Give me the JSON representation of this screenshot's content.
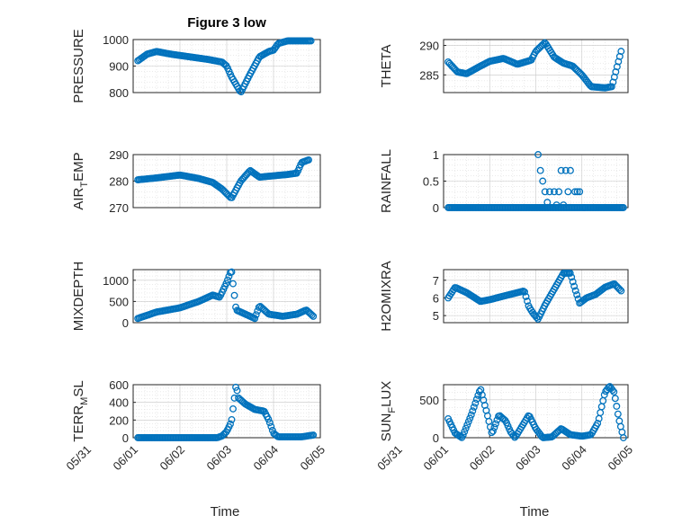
{
  "title": "Figure 3 low",
  "colors": {
    "marker": "#0072BD",
    "grid": "#c8c8c8",
    "axis": "#262626"
  },
  "x_ticks": [
    "05/31",
    "06/01",
    "06/02",
    "06/03",
    "06/04",
    "06/05"
  ],
  "x_label": "Time",
  "chart_data": [
    {
      "id": "pressure",
      "type": "scatter",
      "ylabel": "PRESSURE",
      "ylabel_sub": "",
      "ylim": [
        800,
        1000
      ],
      "yticks": [
        "800",
        "900",
        "1000"
      ],
      "ytick_values": [
        800,
        900,
        1000
      ],
      "x_range": [
        0,
        4
      ],
      "x_segment": [
        0.1,
        3.8
      ],
      "y_knots": [
        [
          0.1,
          920
        ],
        [
          0.3,
          945
        ],
        [
          0.5,
          955
        ],
        [
          0.8,
          945
        ],
        [
          1.2,
          935
        ],
        [
          1.6,
          925
        ],
        [
          1.9,
          915
        ],
        [
          2.0,
          900
        ],
        [
          2.1,
          860
        ],
        [
          2.2,
          830
        ],
        [
          2.3,
          800
        ],
        [
          2.5,
          870
        ],
        [
          2.7,
          935
        ],
        [
          2.9,
          955
        ],
        [
          3.0,
          960
        ],
        [
          3.1,
          985
        ],
        [
          3.3,
          995
        ],
        [
          3.8,
          995
        ]
      ]
    },
    {
      "id": "theta",
      "type": "scatter",
      "ylabel": "THETA",
      "ylabel_sub": "",
      "ylim": [
        282,
        291
      ],
      "yticks": [
        "285",
        "290"
      ],
      "ytick_values": [
        285,
        290
      ],
      "x_range": [
        0,
        4
      ],
      "x_segment": [
        0.1,
        3.85
      ],
      "y_knots": [
        [
          0.1,
          287.2
        ],
        [
          0.3,
          285.5
        ],
        [
          0.5,
          285.2
        ],
        [
          0.8,
          286.5
        ],
        [
          1.0,
          287.3
        ],
        [
          1.3,
          287.8
        ],
        [
          1.6,
          286.8
        ],
        [
          1.9,
          287.5
        ],
        [
          2.0,
          289
        ],
        [
          2.2,
          290.5
        ],
        [
          2.4,
          288
        ],
        [
          2.6,
          287
        ],
        [
          2.8,
          286.5
        ],
        [
          3.0,
          285
        ],
        [
          3.2,
          283
        ],
        [
          3.5,
          282.8
        ],
        [
          3.65,
          283
        ],
        [
          3.75,
          286
        ],
        [
          3.85,
          289
        ]
      ]
    },
    {
      "id": "air_temp",
      "type": "scatter",
      "ylabel": "AIR",
      "ylabel_sub": "T",
      "ylabel_suffix": "EMP",
      "ylim": [
        270,
        290
      ],
      "yticks": [
        "270",
        "280",
        "290"
      ],
      "ytick_values": [
        270,
        280,
        290
      ],
      "x_range": [
        0,
        4
      ],
      "x_segment": [
        0.1,
        3.75
      ],
      "y_knots": [
        [
          0.1,
          280.5
        ],
        [
          0.5,
          281.2
        ],
        [
          1.0,
          282.3
        ],
        [
          1.4,
          281
        ],
        [
          1.7,
          279.5
        ],
        [
          1.9,
          277
        ],
        [
          2.1,
          273.5
        ],
        [
          2.3,
          280
        ],
        [
          2.5,
          284
        ],
        [
          2.7,
          281.5
        ],
        [
          3.0,
          282
        ],
        [
          3.3,
          282.5
        ],
        [
          3.5,
          283
        ],
        [
          3.6,
          287
        ],
        [
          3.75,
          288
        ]
      ]
    },
    {
      "id": "rainfall",
      "type": "scatter",
      "ylabel": "RAINFALL",
      "ylabel_sub": "",
      "ylim": [
        0,
        1
      ],
      "yticks": [
        "0",
        "0.5",
        "1"
      ],
      "ytick_values": [
        0,
        0.5,
        1
      ],
      "x_range": [
        0,
        4
      ],
      "x_segment": [
        0.1,
        3.9
      ],
      "y_knots": [
        [
          0.1,
          0
        ],
        [
          3.9,
          0
        ]
      ],
      "extra_points": [
        [
          2.05,
          1
        ],
        [
          2.1,
          0.7
        ],
        [
          2.15,
          0.5
        ],
        [
          2.2,
          0.3
        ],
        [
          2.3,
          0.3
        ],
        [
          2.4,
          0.3
        ],
        [
          2.5,
          0.3
        ],
        [
          2.55,
          0.7
        ],
        [
          2.65,
          0.7
        ],
        [
          2.7,
          0.3
        ],
        [
          2.75,
          0.7
        ],
        [
          2.85,
          0.3
        ],
        [
          2.9,
          0.3
        ],
        [
          2.95,
          0.3
        ],
        [
          2.25,
          0.1
        ],
        [
          2.45,
          0.05
        ],
        [
          2.6,
          0.05
        ],
        [
          3.05,
          0.0
        ]
      ]
    },
    {
      "id": "mixdepth",
      "type": "scatter",
      "ylabel": "MIXDEPTH",
      "ylabel_sub": "",
      "ylim": [
        0,
        1250
      ],
      "yticks": [
        "0",
        "500",
        "1000"
      ],
      "ytick_values": [
        0,
        500,
        1000
      ],
      "x_range": [
        0,
        4
      ],
      "x_segment": [
        0.1,
        3.85
      ],
      "y_knots": [
        [
          0.1,
          100
        ],
        [
          0.5,
          250
        ],
        [
          1.0,
          350
        ],
        [
          1.4,
          500
        ],
        [
          1.7,
          650
        ],
        [
          1.85,
          600
        ],
        [
          2.0,
          950
        ],
        [
          2.1,
          1250
        ],
        [
          2.2,
          300
        ],
        [
          2.4,
          200
        ],
        [
          2.6,
          100
        ],
        [
          2.7,
          400
        ],
        [
          2.9,
          200
        ],
        [
          3.2,
          150
        ],
        [
          3.5,
          200
        ],
        [
          3.7,
          300
        ],
        [
          3.85,
          150
        ]
      ]
    },
    {
      "id": "h2omixra",
      "type": "scatter",
      "ylabel": "H2OMIXRA",
      "ylabel_sub": "",
      "ylim": [
        4.6,
        7.6
      ],
      "yticks": [
        "5",
        "6",
        "7"
      ],
      "ytick_values": [
        5,
        6,
        7
      ],
      "x_range": [
        0,
        4
      ],
      "x_segment": [
        0.1,
        3.85
      ],
      "y_knots": [
        [
          0.1,
          6
        ],
        [
          0.25,
          6.6
        ],
        [
          0.5,
          6.3
        ],
        [
          0.8,
          5.8
        ],
        [
          1.0,
          5.9
        ],
        [
          1.3,
          6.1
        ],
        [
          1.6,
          6.3
        ],
        [
          1.75,
          6.4
        ],
        [
          1.85,
          5.5
        ],
        [
          1.95,
          5.1
        ],
        [
          2.05,
          4.8
        ],
        [
          2.2,
          5.6
        ],
        [
          2.4,
          6.5
        ],
        [
          2.6,
          7.4
        ],
        [
          2.75,
          7.4
        ],
        [
          2.85,
          6.5
        ],
        [
          2.95,
          5.7
        ],
        [
          3.1,
          6
        ],
        [
          3.3,
          6.2
        ],
        [
          3.5,
          6.6
        ],
        [
          3.7,
          6.8
        ],
        [
          3.85,
          6.4
        ]
      ]
    },
    {
      "id": "terr_msl",
      "type": "scatter",
      "ylabel": "TERR",
      "ylabel_sub": "M",
      "ylabel_suffix": "SL",
      "ylim": [
        0,
        600
      ],
      "yticks": [
        "0",
        "200",
        "400",
        "600"
      ],
      "ytick_values": [
        0,
        200,
        400,
        600
      ],
      "x_range": [
        0,
        4
      ],
      "x_segment": [
        0.1,
        3.85
      ],
      "y_knots": [
        [
          0.1,
          0
        ],
        [
          1.8,
          0
        ],
        [
          1.9,
          20
        ],
        [
          2.0,
          70
        ],
        [
          2.1,
          180
        ],
        [
          2.2,
          600
        ],
        [
          2.25,
          450
        ],
        [
          2.4,
          380
        ],
        [
          2.6,
          320
        ],
        [
          2.8,
          300
        ],
        [
          2.9,
          200
        ],
        [
          3.0,
          50
        ],
        [
          3.1,
          10
        ],
        [
          3.6,
          10
        ],
        [
          3.85,
          30
        ]
      ]
    },
    {
      "id": "sun_flux",
      "type": "scatter",
      "ylabel": "SUN",
      "ylabel_sub": "F",
      "ylabel_suffix": "LUX",
      "ylim": [
        0,
        700
      ],
      "yticks": [
        "0",
        "500"
      ],
      "ytick_values": [
        0,
        500
      ],
      "x_range": [
        0,
        4
      ],
      "x_segment": [
        0.1,
        3.9
      ],
      "y_knots": [
        [
          0.1,
          250
        ],
        [
          0.25,
          60
        ],
        [
          0.4,
          0
        ],
        [
          0.6,
          300
        ],
        [
          0.8,
          650
        ],
        [
          0.95,
          300
        ],
        [
          1.05,
          50
        ],
        [
          1.2,
          300
        ],
        [
          1.35,
          220
        ],
        [
          1.45,
          80
        ],
        [
          1.55,
          0
        ],
        [
          1.7,
          150
        ],
        [
          1.85,
          300
        ],
        [
          2.0,
          120
        ],
        [
          2.15,
          0
        ],
        [
          2.35,
          10
        ],
        [
          2.55,
          120
        ],
        [
          2.75,
          40
        ],
        [
          3.0,
          20
        ],
        [
          3.2,
          40
        ],
        [
          3.35,
          200
        ],
        [
          3.5,
          600
        ],
        [
          3.6,
          680
        ],
        [
          3.7,
          600
        ],
        [
          3.8,
          250
        ],
        [
          3.9,
          0
        ]
      ]
    }
  ]
}
